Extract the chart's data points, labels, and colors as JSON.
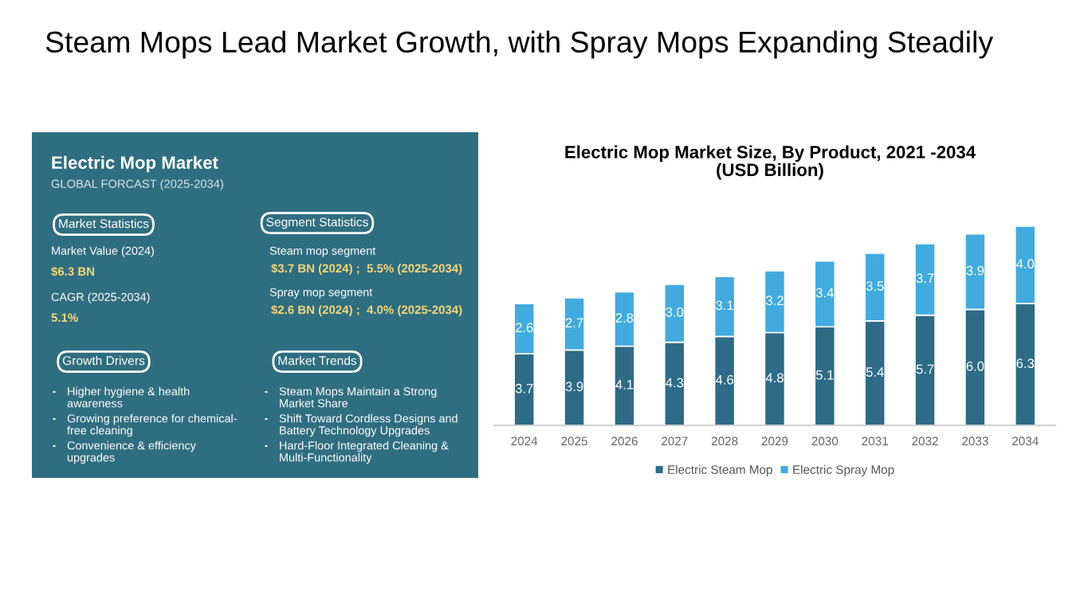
{
  "chart_data": [
    {
      "type": "other",
      "title": "Electric Mop Market",
      "subtitle": "GLOBAL FORCAST (2025-2034)",
      "annotations": [
        "Steam Mops Lead Market Growth, with Spray Mops Expanding Steadily",
        "Market Statistics",
        "Market Value (2024)",
        "$6.3 BN",
        "CAGR (2025-2034)",
        "5.1%",
        "Segment Statistics",
        "Steam mop segment",
        "$3.7 BN (2024) ;  5.5% (2025-2034)",
        "Spray mop segment",
        "$2.6 BN (2024) ;  4.0% (2025-2034)",
        "Growth Drivers",
        "Higher hygiene & health\nawareness",
        "Growing preference for chemical-\nfree cleaning",
        "Convenience & efficiency\nupgrades",
        "Market Trends",
        "Steam Mops Maintain a Strong\nMarket Share",
        "Shift Toward Cordless Designs and\nBattery Technology Upgrades",
        "Hard-Floor Integrated Cleaning &\nMulti-Functionality"
      ]
    },
    {
      "type": "bar",
      "title": "Electric Mop Market Size, By Product, 2021 -2034\n(USD Billion)",
      "categories": [
        "2024",
        "2025",
        "2026",
        "2027",
        "2028",
        "2029",
        "2030",
        "2031",
        "2032",
        "2033",
        "2034"
      ],
      "stacked": true,
      "legend": "bottom",
      "series": [
        {
          "name": "Electric Steam Mop",
          "color": "#2d6b87",
          "values": [
            3.7,
            3.9,
            4.1,
            4.3,
            4.6,
            4.8,
            5.1,
            5.4,
            5.7,
            6.0,
            6.3
          ],
          "value_labels": [
            "3.7",
            "3.9",
            "4.1",
            "4.3",
            "4.6",
            "4.8",
            "5.1",
            "5.4",
            "5.7",
            "6.0",
            "6.3"
          ]
        },
        {
          "name": "Electric Spray Mop",
          "color": "#41abdf",
          "values": [
            2.6,
            2.7,
            2.8,
            3.0,
            3.1,
            3.2,
            3.4,
            3.5,
            3.7,
            3.9,
            4.0
          ],
          "value_labels": [
            "2.6",
            "2.7",
            "2.8",
            "3.0",
            "3.1",
            "3.2",
            "3.4",
            "3.5",
            "3.7",
            "3.9",
            "4.0"
          ]
        }
      ]
    }
  ]
}
